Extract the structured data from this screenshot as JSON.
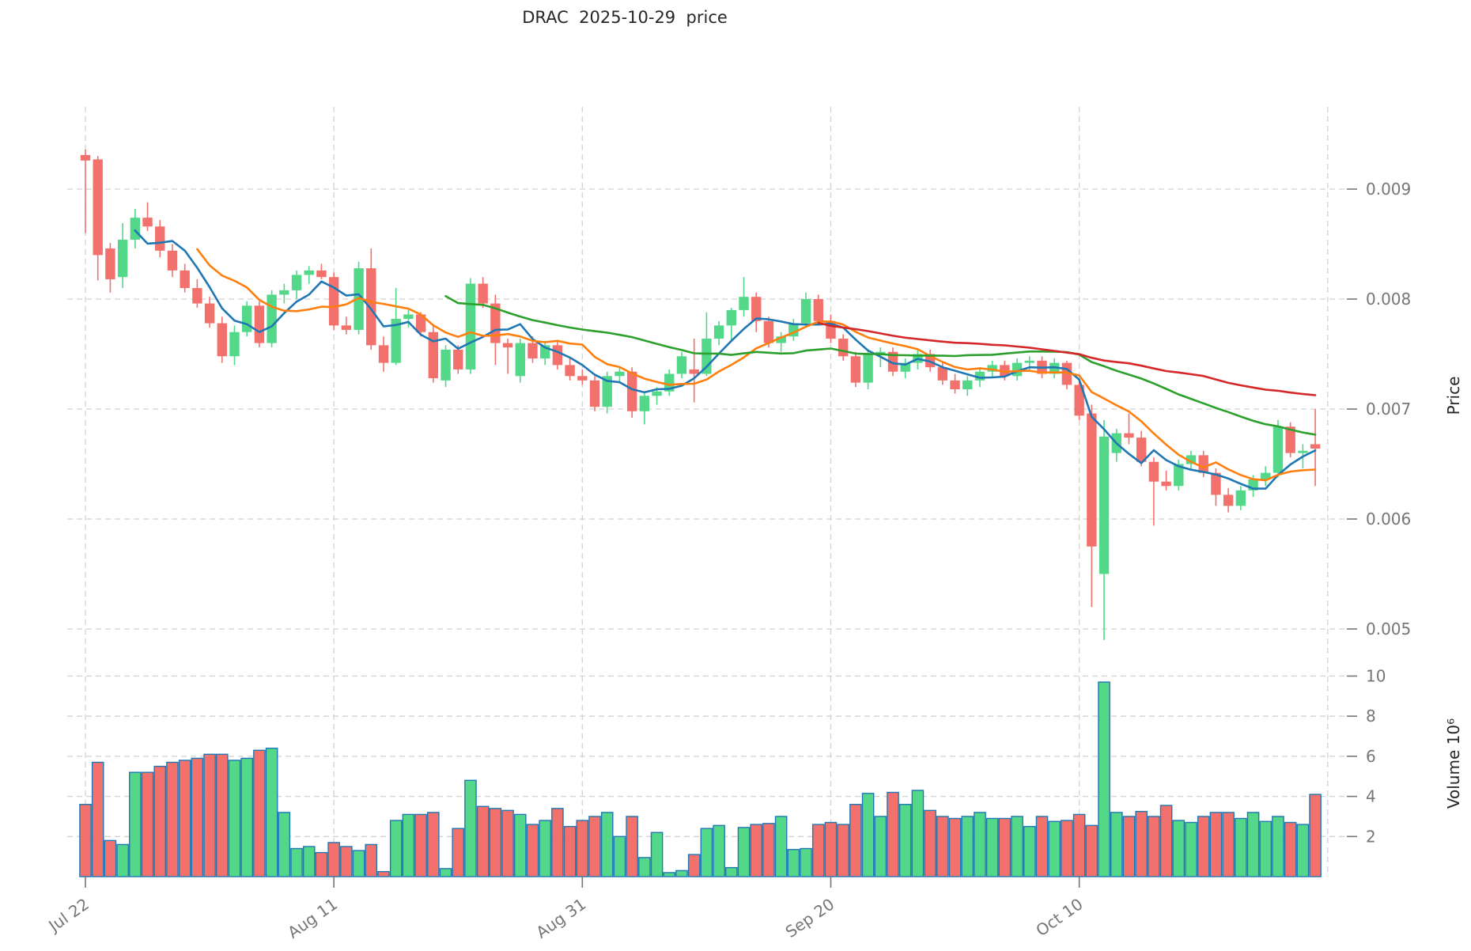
{
  "title": "DRAC  2025-10-29  price",
  "chart_data": {
    "type": "candlestick",
    "title": "DRAC  2025-10-29  price",
    "xlabel": "",
    "ylabel": "Price",
    "y2label": "Volume 10⁶",
    "volume_units": "×10⁶",
    "price_axis": {
      "ticks": [
        0.009,
        0.008,
        0.007,
        0.006,
        0.005
      ],
      "side": "right"
    },
    "volume_axis": {
      "ticks": [
        10,
        8,
        6,
        4,
        2
      ],
      "side": "right"
    },
    "x_ticks": [
      {
        "label": "Jul 22",
        "index": 0
      },
      {
        "label": "Aug 11",
        "index": 20
      },
      {
        "label": "Aug 31",
        "index": 40
      },
      {
        "label": "Sep 20",
        "index": 60
      },
      {
        "label": "Oct 10",
        "index": 80
      },
      {
        "label": "",
        "index": 100
      }
    ],
    "grid": true,
    "legend": "none",
    "moving_averages": {
      "windows": [
        5,
        10,
        30,
        60
      ],
      "colors": [
        "#1f77b4",
        "#ff7f0e",
        "#2ca02c",
        "#d62728"
      ]
    },
    "colors": {
      "up": "#53d88a",
      "down": "#f3716c",
      "volume_edge": "#1f77b4",
      "grid": "#d2d2d2",
      "tick_text": "#767676"
    },
    "columns": [
      "date",
      "open",
      "high",
      "low",
      "close",
      "volume_millions"
    ],
    "rows": [
      [
        "07-22",
        0.00931,
        0.00936,
        0.0086,
        0.00926,
        3.6
      ],
      [
        "07-23",
        0.00927,
        0.0093,
        0.00817,
        0.0084,
        5.7
      ],
      [
        "07-24",
        0.00846,
        0.00851,
        0.00806,
        0.00818,
        1.8
      ],
      [
        "07-25",
        0.0082,
        0.00869,
        0.0081,
        0.00854,
        1.6
      ],
      [
        "07-26",
        0.00854,
        0.00882,
        0.00846,
        0.00874,
        5.2
      ],
      [
        "07-27",
        0.00874,
        0.00888,
        0.00862,
        0.00866,
        5.2
      ],
      [
        "07-28",
        0.00866,
        0.00872,
        0.00838,
        0.00844,
        5.5
      ],
      [
        "07-29",
        0.00844,
        0.0085,
        0.0082,
        0.00826,
        5.7
      ],
      [
        "07-30",
        0.00826,
        0.00832,
        0.00806,
        0.0081,
        5.8
      ],
      [
        "07-31",
        0.0081,
        0.00818,
        0.00792,
        0.00796,
        5.9
      ],
      [
        "08-01",
        0.00796,
        0.00802,
        0.00774,
        0.00778,
        6.1
      ],
      [
        "08-02",
        0.00778,
        0.00784,
        0.00742,
        0.00748,
        6.1
      ],
      [
        "08-03",
        0.00748,
        0.00776,
        0.0074,
        0.0077,
        5.8
      ],
      [
        "08-04",
        0.0077,
        0.00798,
        0.00766,
        0.00794,
        5.9
      ],
      [
        "08-05",
        0.00794,
        0.00798,
        0.00756,
        0.0076,
        6.3
      ],
      [
        "08-06",
        0.0076,
        0.00808,
        0.00756,
        0.00804,
        6.4
      ],
      [
        "08-07",
        0.00804,
        0.00814,
        0.00796,
        0.00808,
        3.2
      ],
      [
        "08-08",
        0.00808,
        0.00826,
        0.008,
        0.00822,
        1.4
      ],
      [
        "08-09",
        0.00822,
        0.0083,
        0.00814,
        0.00826,
        1.5
      ],
      [
        "08-10",
        0.00826,
        0.00832,
        0.00818,
        0.0082,
        1.2
      ],
      [
        "08-11",
        0.0082,
        0.00824,
        0.00772,
        0.00776,
        1.7
      ],
      [
        "08-12",
        0.00776,
        0.00784,
        0.00768,
        0.00772,
        1.5
      ],
      [
        "08-13",
        0.00772,
        0.00834,
        0.00768,
        0.00828,
        1.3
      ],
      [
        "08-14",
        0.00828,
        0.00846,
        0.00754,
        0.00758,
        1.6
      ],
      [
        "08-15",
        0.00758,
        0.00766,
        0.00734,
        0.00742,
        0.25
      ],
      [
        "08-16",
        0.00742,
        0.0081,
        0.0074,
        0.00782,
        2.8
      ],
      [
        "08-17",
        0.00782,
        0.0079,
        0.00774,
        0.00786,
        3.1
      ],
      [
        "08-18",
        0.00786,
        0.00788,
        0.00766,
        0.0077,
        3.1
      ],
      [
        "08-19",
        0.0077,
        0.00776,
        0.00724,
        0.00728,
        3.2
      ],
      [
        "08-20",
        0.00726,
        0.00758,
        0.0072,
        0.00754,
        0.4
      ],
      [
        "08-21",
        0.00754,
        0.00758,
        0.00732,
        0.00736,
        2.4
      ],
      [
        "08-22",
        0.00736,
        0.00819,
        0.00732,
        0.00814,
        4.8
      ],
      [
        "08-23",
        0.00814,
        0.0082,
        0.00792,
        0.00796,
        3.5
      ],
      [
        "08-24",
        0.00796,
        0.00804,
        0.0074,
        0.0076,
        3.4
      ],
      [
        "08-25",
        0.0076,
        0.00764,
        0.00732,
        0.00756,
        3.3
      ],
      [
        "08-26",
        0.0073,
        0.00764,
        0.00724,
        0.0076,
        3.1
      ],
      [
        "08-27",
        0.0076,
        0.00766,
        0.00742,
        0.00746,
        2.6
      ],
      [
        "08-28",
        0.00746,
        0.00762,
        0.0074,
        0.00758,
        2.8
      ],
      [
        "08-29",
        0.00758,
        0.00762,
        0.00736,
        0.0074,
        3.4
      ],
      [
        "08-30",
        0.0074,
        0.00746,
        0.00726,
        0.0073,
        2.5
      ],
      [
        "08-31",
        0.0073,
        0.00736,
        0.00722,
        0.00726,
        2.8
      ],
      [
        "09-01",
        0.00726,
        0.0073,
        0.00698,
        0.00702,
        3.0
      ],
      [
        "09-02",
        0.00702,
        0.00734,
        0.00696,
        0.0073,
        3.2
      ],
      [
        "09-03",
        0.0073,
        0.00738,
        0.00724,
        0.00734,
        2.0
      ],
      [
        "09-04",
        0.00734,
        0.00738,
        0.00692,
        0.00698,
        3.0
      ],
      [
        "09-05",
        0.00698,
        0.00716,
        0.00686,
        0.00712,
        0.95
      ],
      [
        "09-06",
        0.00712,
        0.0072,
        0.00704,
        0.00716,
        2.2
      ],
      [
        "09-07",
        0.00716,
        0.00736,
        0.00712,
        0.00732,
        0.2
      ],
      [
        "09-08",
        0.00732,
        0.00752,
        0.00728,
        0.00748,
        0.3
      ],
      [
        "09-09",
        0.00736,
        0.00764,
        0.00706,
        0.00732,
        1.1
      ],
      [
        "09-10",
        0.00732,
        0.00788,
        0.0073,
        0.00764,
        2.4
      ],
      [
        "09-11",
        0.00764,
        0.0078,
        0.00758,
        0.00776,
        2.55
      ],
      [
        "09-12",
        0.00776,
        0.00792,
        0.00762,
        0.0079,
        0.45
      ],
      [
        "09-13",
        0.0079,
        0.0082,
        0.00784,
        0.00802,
        2.45
      ],
      [
        "09-14",
        0.00802,
        0.00806,
        0.0077,
        0.0078,
        2.6
      ],
      [
        "09-15",
        0.0078,
        0.00784,
        0.00756,
        0.0076,
        2.65
      ],
      [
        "09-16",
        0.0076,
        0.0077,
        0.00752,
        0.00766,
        3.0
      ],
      [
        "09-17",
        0.00766,
        0.00782,
        0.00762,
        0.00778,
        1.35
      ],
      [
        "09-18",
        0.00778,
        0.00806,
        0.00774,
        0.008,
        1.4
      ],
      [
        "09-19",
        0.008,
        0.00804,
        0.00776,
        0.0078,
        2.6
      ],
      [
        "09-20",
        0.0078,
        0.00786,
        0.0076,
        0.00764,
        2.7
      ],
      [
        "09-21",
        0.00764,
        0.00768,
        0.00744,
        0.00748,
        2.6
      ],
      [
        "09-22",
        0.00748,
        0.00752,
        0.0072,
        0.00724,
        3.6
      ],
      [
        "09-23",
        0.00724,
        0.00754,
        0.00718,
        0.0075,
        4.15
      ],
      [
        "09-24",
        0.0075,
        0.00756,
        0.00738,
        0.00752,
        3.0
      ],
      [
        "09-25",
        0.00752,
        0.00756,
        0.0073,
        0.00734,
        4.2
      ],
      [
        "09-26",
        0.00734,
        0.00746,
        0.00728,
        0.00742,
        3.6
      ],
      [
        "09-27",
        0.00742,
        0.00754,
        0.00736,
        0.0075,
        4.3
      ],
      [
        "09-28",
        0.0075,
        0.00754,
        0.00734,
        0.00738,
        3.3
      ],
      [
        "09-29",
        0.00738,
        0.00742,
        0.00722,
        0.00726,
        3.0
      ],
      [
        "09-30",
        0.00726,
        0.00732,
        0.00714,
        0.00718,
        2.9
      ],
      [
        "10-01",
        0.00718,
        0.0073,
        0.00712,
        0.00726,
        3.0
      ],
      [
        "10-02",
        0.00726,
        0.00738,
        0.0072,
        0.00734,
        3.2
      ],
      [
        "10-03",
        0.00734,
        0.00744,
        0.00728,
        0.0074,
        2.9
      ],
      [
        "10-04",
        0.0074,
        0.00744,
        0.00726,
        0.0073,
        2.9
      ],
      [
        "10-05",
        0.0073,
        0.00746,
        0.00726,
        0.00742,
        3.0
      ],
      [
        "10-06",
        0.00742,
        0.00748,
        0.00734,
        0.00744,
        2.5
      ],
      [
        "10-07",
        0.00744,
        0.00748,
        0.00728,
        0.00732,
        3.0
      ],
      [
        "10-08",
        0.00732,
        0.00746,
        0.00728,
        0.00742,
        2.75
      ],
      [
        "10-09",
        0.00742,
        0.00744,
        0.00718,
        0.00722,
        2.8
      ],
      [
        "10-10",
        0.00722,
        0.00726,
        0.0069,
        0.00694,
        3.1
      ],
      [
        "10-11",
        0.00696,
        0.00704,
        0.0052,
        0.00575,
        2.55
      ],
      [
        "10-12",
        0.0055,
        0.0069,
        0.0049,
        0.00675,
        9.7
      ],
      [
        "10-13",
        0.0066,
        0.00682,
        0.00652,
        0.00678,
        3.2
      ],
      [
        "10-14",
        0.00678,
        0.00696,
        0.00668,
        0.00674,
        3.0
      ],
      [
        "10-15",
        0.00674,
        0.0068,
        0.00648,
        0.00652,
        3.25
      ],
      [
        "10-16",
        0.00652,
        0.00656,
        0.00594,
        0.00634,
        3.0
      ],
      [
        "10-17",
        0.00634,
        0.00644,
        0.00626,
        0.0063,
        3.55
      ],
      [
        "10-18",
        0.0063,
        0.00654,
        0.00626,
        0.0065,
        2.8
      ],
      [
        "10-19",
        0.0065,
        0.00662,
        0.00644,
        0.00658,
        2.7
      ],
      [
        "10-20",
        0.00658,
        0.00662,
        0.00638,
        0.00642,
        3.0
      ],
      [
        "10-21",
        0.00642,
        0.00646,
        0.00612,
        0.00622,
        3.2
      ],
      [
        "10-22",
        0.00622,
        0.00628,
        0.00606,
        0.00612,
        3.2
      ],
      [
        "10-23",
        0.00612,
        0.0063,
        0.00608,
        0.00626,
        2.9
      ],
      [
        "10-24",
        0.00626,
        0.0064,
        0.0062,
        0.00636,
        3.2
      ],
      [
        "10-25",
        0.00636,
        0.00648,
        0.0063,
        0.00642,
        2.75
      ],
      [
        "10-26",
        0.00642,
        0.0069,
        0.00638,
        0.00684,
        3.0
      ],
      [
        "10-27",
        0.00684,
        0.00688,
        0.00656,
        0.0066,
        2.7
      ],
      [
        "10-28",
        0.0066,
        0.00668,
        0.00646,
        0.00662,
        2.6
      ],
      [
        "10-29",
        0.00668,
        0.007,
        0.0063,
        0.00664,
        4.1
      ]
    ]
  }
}
